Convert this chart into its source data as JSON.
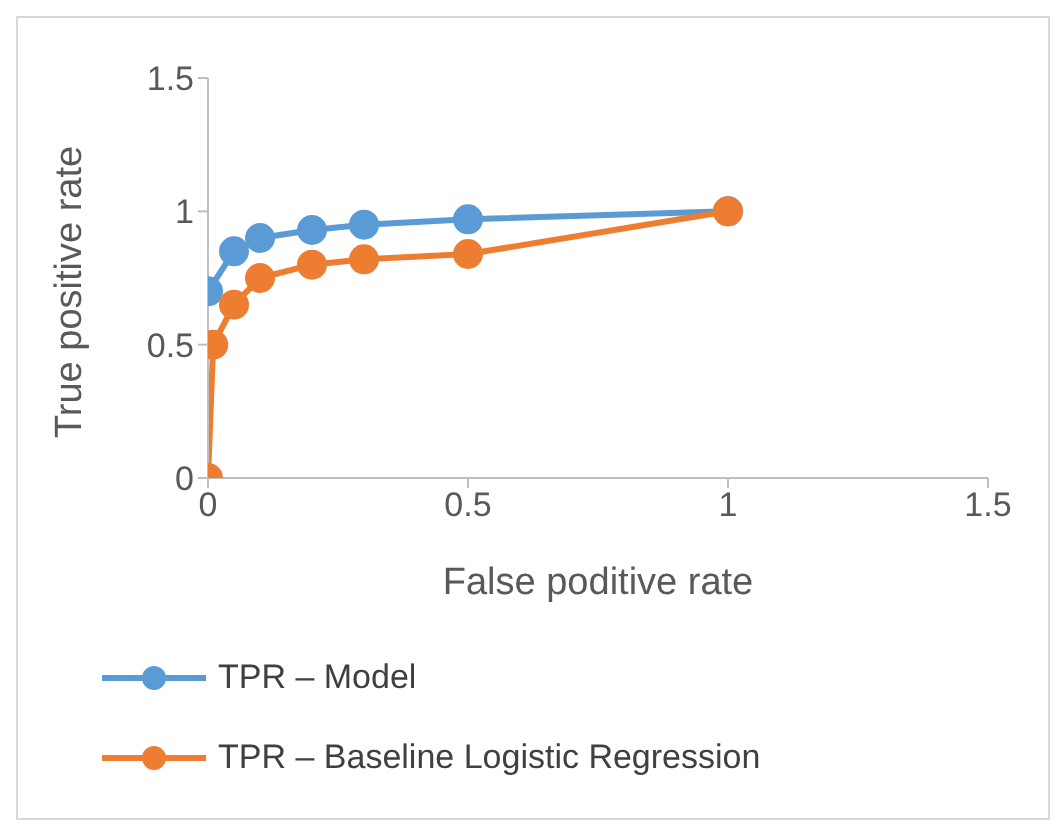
{
  "chart_data": {
    "type": "line",
    "xlabel": "False poditive rate",
    "ylabel": "True positive rate",
    "xlim": [
      0,
      1.5
    ],
    "xticks": [
      0,
      0.5,
      1,
      1.5
    ],
    "ylim": [
      0,
      1.5
    ],
    "yticks": [
      0,
      0.5,
      1,
      1.5
    ],
    "grid": false,
    "legend": "bottom",
    "marker": "circle",
    "line_style": "solid",
    "series": [
      {
        "name": "TPR – Model",
        "color": "#5b9bd5",
        "x": [
          0,
          0.05,
          0.1,
          0.2,
          0.3,
          0.5,
          1
        ],
        "values": [
          0.7,
          0.85,
          0.9,
          0.93,
          0.95,
          0.97,
          1
        ]
      },
      {
        "name": "TPR – Baseline Logistic Regression",
        "color": "#ed7d31",
        "x": [
          0,
          0.01,
          0.05,
          0.1,
          0.2,
          0.3,
          0.5,
          1
        ],
        "values": [
          0,
          0.5,
          0.65,
          0.75,
          0.8,
          0.82,
          0.84,
          1
        ]
      }
    ]
  }
}
